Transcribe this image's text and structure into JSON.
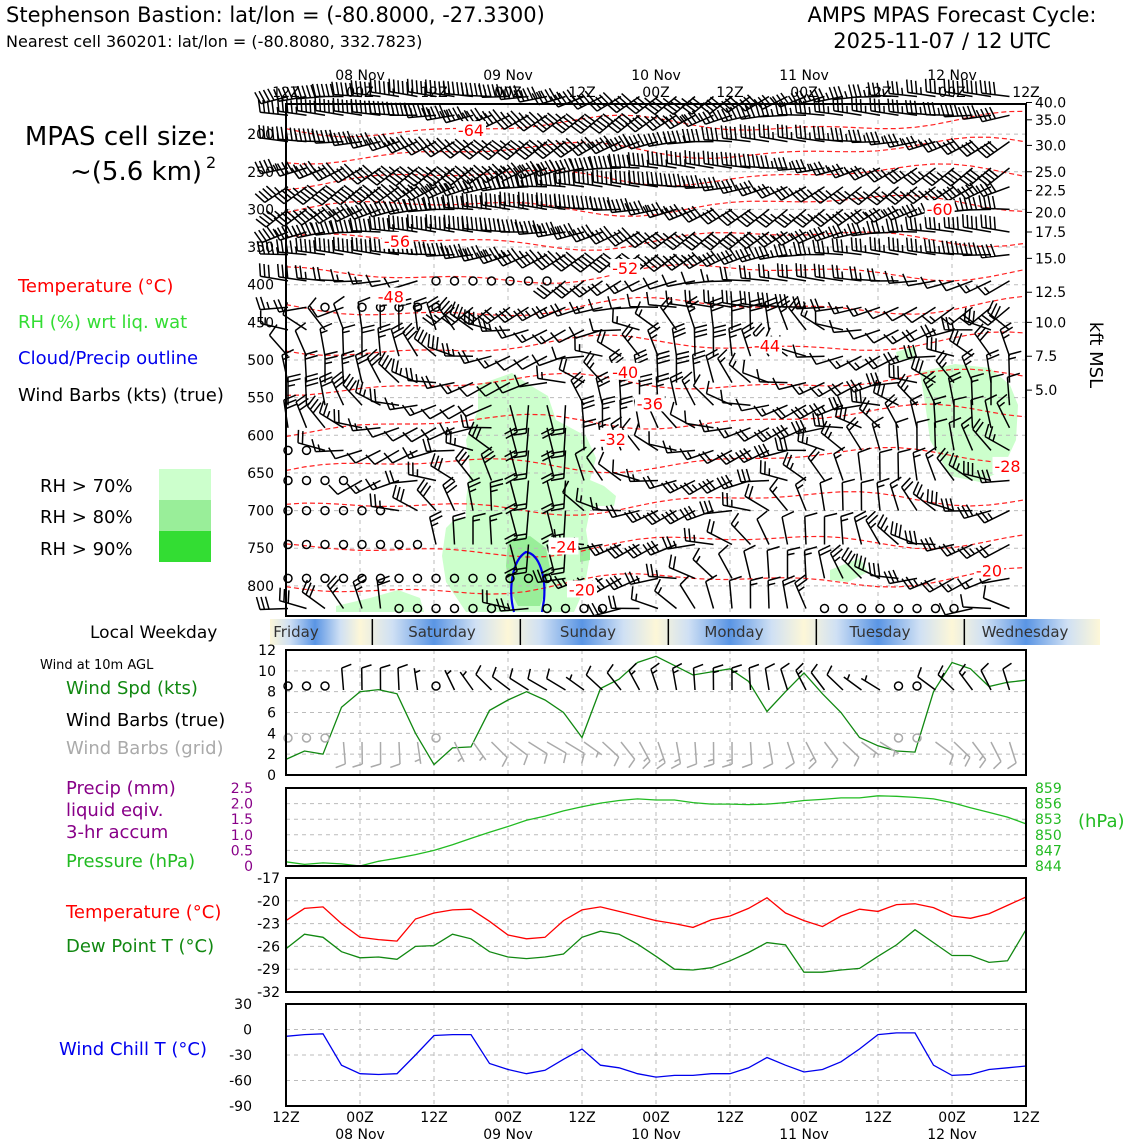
{
  "header": {
    "title_left": "Stephenson Bastion: lat/lon = (-80.8000, -27.3300)",
    "subtitle_left": "Nearest cell 360201: lat/lon = (-80.8080, 332.7823)",
    "title_right_1": "AMPS MPAS Forecast Cycle:",
    "title_right_2": "2025-11-07 / 12 UTC",
    "cell_size_1": "MPAS cell size:",
    "cell_size_2": "~(5.6 km)",
    "cell_size_exp": "2"
  },
  "colors": {
    "temperature": "#ff0000",
    "rh_label": "#33dd33",
    "cloud": "#0000ee",
    "rh70": "#ccffcc",
    "rh80": "#99ee99",
    "rh90": "#33dd33",
    "pressure": "#22bb22",
    "dewpoint": "#118811",
    "windchill": "#0000ee",
    "precip": "#880088",
    "windspd": "#118811",
    "grid_barb": "#aaaaaa"
  },
  "legend": {
    "temperature": "Temperature (°C)",
    "rh": "RH (%) wrt liq. wat",
    "cloud": "Cloud/Precip outline",
    "barbs": "Wind Barbs (kts) (true)",
    "rh70": "RH > 70%",
    "rh80": "RH > 80%",
    "rh90": "RH > 90%"
  },
  "time_axis": {
    "hours": [
      "12Z",
      "00Z",
      "12Z",
      "00Z",
      "12Z",
      "00Z",
      "12Z",
      "00Z",
      "12Z",
      "00Z",
      "12Z"
    ],
    "dates": [
      "",
      "08 Nov",
      "",
      "09 Nov",
      "",
      "10 Nov",
      "",
      "11 Nov",
      "",
      "12 Nov",
      ""
    ]
  },
  "weekday": {
    "label": "Local Weekday",
    "days": [
      "Friday",
      "Saturday",
      "Sunday",
      "Monday",
      "Tuesday",
      "Wednesday"
    ]
  },
  "side_labels": {
    "wind10m": "Wind at 10m AGL",
    "windspd": "Wind Spd (kts)",
    "barbs_true": "Wind Barbs (true)",
    "barbs_grid": "Wind Barbs (grid)",
    "precip_1": "Precip (mm)",
    "precip_2": "liquid eqiv.",
    "precip_3": "3-hr accum",
    "pressure": "Pressure (hPa)",
    "temp": "Temperature (°C)",
    "dewp": "Dew Point T (°C)",
    "windchill": "Wind Chill T (°C)"
  },
  "chart_data": [
    {
      "type": "line",
      "name": "upper-air time-height section",
      "x_hours": [
        0,
        12,
        24,
        36,
        48,
        60,
        72,
        84,
        96,
        108,
        120
      ],
      "x_tick_labels": [
        "12Z",
        "00Z",
        "12Z",
        "00Z",
        "12Z",
        "00Z",
        "12Z",
        "00Z",
        "12Z",
        "00Z",
        "12Z"
      ],
      "ylabel_left": "",
      "ylabel_right": "kft MSL",
      "y_pressure_ticks": [
        200,
        250,
        300,
        350,
        400,
        450,
        500,
        550,
        600,
        650,
        700,
        750,
        800
      ],
      "ylim_pressure": [
        840,
        160
      ],
      "y_kft_ticks": [
        {
          "label": "40.0",
          "p": 158
        },
        {
          "label": "35.0",
          "p": 181
        },
        {
          "label": "30.0",
          "p": 215
        },
        {
          "label": "25.0",
          "p": 250
        },
        {
          "label": "22.5",
          "p": 275
        },
        {
          "label": "20.0",
          "p": 304
        },
        {
          "label": "17.5",
          "p": 330
        },
        {
          "label": "15.0",
          "p": 365
        },
        {
          "label": "12.5",
          "p": 410
        },
        {
          "label": "10.0",
          "p": 450
        },
        {
          "label": "7.5",
          "p": 495
        },
        {
          "label": "5.0",
          "p": 540
        }
      ],
      "temperature_contour_labels": [
        {
          "text": "-64",
          "t": 30,
          "p": 200
        },
        {
          "text": "-60",
          "t": 106,
          "p": 305
        },
        {
          "text": "-56",
          "t": 18,
          "p": 347
        },
        {
          "text": "-52",
          "t": 55,
          "p": 383
        },
        {
          "text": "-48",
          "t": 17,
          "p": 421
        },
        {
          "text": "-44",
          "t": 78,
          "p": 486
        },
        {
          "text": "-40",
          "t": 55,
          "p": 521
        },
        {
          "text": "-36",
          "t": 59,
          "p": 563
        },
        {
          "text": "-32",
          "t": 53,
          "p": 610
        },
        {
          "text": "-28",
          "t": 117,
          "p": 646
        },
        {
          "text": "-24",
          "t": 45,
          "p": 753
        },
        {
          "text": "-20",
          "t": 48,
          "p": 810
        },
        {
          "text": "-20",
          "t": 114,
          "p": 785
        }
      ]
    },
    {
      "type": "line",
      "name": "10m wind speed",
      "ylabel": "Wind Spd (kts)",
      "ylim": [
        0,
        12
      ],
      "y_ticks": [
        "0",
        "2",
        "4",
        "6",
        "8",
        "10",
        "12"
      ],
      "x_hours": [
        0,
        3,
        6,
        9,
        12,
        15,
        18,
        21,
        24,
        27,
        30,
        33,
        36,
        39,
        42,
        45,
        48,
        51,
        54,
        57,
        60,
        63,
        66,
        69,
        72,
        75,
        78,
        81,
        84,
        87,
        90,
        93,
        96,
        99,
        102,
        105,
        108,
        111,
        114,
        117,
        120
      ],
      "values": [
        1.5,
        2.3,
        2.0,
        6.5,
        8.0,
        8.2,
        7.8,
        4.0,
        1.0,
        2.6,
        2.7,
        6.2,
        7.2,
        8.0,
        7.2,
        6.0,
        3.6,
        8.3,
        9.2,
        10.8,
        11.4,
        10.5,
        9.6,
        9.9,
        10.2,
        9.0,
        6.1,
        8.0,
        9.8,
        7.8,
        6.0,
        3.6,
        2.8,
        2.3,
        2.2,
        8.0,
        10.8,
        10.2,
        8.5,
        8.9,
        9.1
      ]
    },
    {
      "type": "line",
      "name": "precip and surface pressure",
      "ylabel_left": "Precip (mm)",
      "ylabel_right": "(hPa)",
      "ylim_left": [
        0,
        2.5
      ],
      "y_ticks_left": [
        "0",
        "0.5",
        "1.0",
        "1.5",
        "2.0",
        "2.5"
      ],
      "ylim_right": [
        844,
        859
      ],
      "y_ticks_right": [
        "844",
        "847",
        "850",
        "853",
        "856",
        "859"
      ],
      "x_hours": [
        0,
        3,
        6,
        9,
        12,
        15,
        18,
        21,
        24,
        27,
        30,
        33,
        36,
        39,
        42,
        45,
        48,
        51,
        54,
        57,
        60,
        63,
        66,
        69,
        72,
        75,
        78,
        81,
        84,
        87,
        90,
        93,
        96,
        99,
        102,
        105,
        108,
        111,
        114,
        117,
        120
      ],
      "precip_values": [],
      "pressure_values": [
        844.8,
        844.3,
        844.6,
        844.4,
        844.0,
        844.9,
        845.5,
        846.2,
        847.0,
        848.1,
        849.3,
        850.5,
        851.6,
        852.8,
        853.6,
        854.6,
        855.4,
        856.1,
        856.6,
        856.9,
        856.7,
        856.7,
        856.2,
        855.9,
        855.9,
        855.8,
        855.9,
        856.2,
        856.6,
        856.8,
        857.1,
        857.1,
        857.5,
        857.4,
        857.2,
        856.9,
        856.2,
        855.2,
        854.3,
        853.4,
        852.1
      ]
    },
    {
      "type": "line",
      "name": "temperature and dew point",
      "ylim": [
        -32,
        -17
      ],
      "y_ticks": [
        "-32",
        "-29",
        "-26",
        "-23",
        "-20",
        "-17"
      ],
      "x_hours": [
        0,
        3,
        6,
        9,
        12,
        15,
        18,
        21,
        24,
        27,
        30,
        33,
        36,
        39,
        42,
        45,
        48,
        51,
        54,
        57,
        60,
        63,
        66,
        69,
        72,
        75,
        78,
        81,
        84,
        87,
        90,
        93,
        96,
        99,
        102,
        105,
        108,
        111,
        114,
        117,
        120
      ],
      "series": [
        {
          "name": "Temperature",
          "values": [
            -22.6,
            -21.0,
            -20.8,
            -23.0,
            -24.8,
            -25.1,
            -25.3,
            -22.4,
            -21.6,
            -21.2,
            -21.1,
            -22.7,
            -24.5,
            -25.0,
            -24.8,
            -22.6,
            -21.2,
            -20.8,
            -21.4,
            -22.0,
            -22.6,
            -23.0,
            -23.5,
            -22.5,
            -22.0,
            -21.0,
            -19.6,
            -21.6,
            -22.6,
            -23.4,
            -22.0,
            -21.1,
            -21.4,
            -20.5,
            -20.4,
            -20.9,
            -22.0,
            -22.3,
            -21.7,
            -20.6,
            -19.5
          ]
        },
        {
          "name": "Dew Point",
          "values": [
            -26.3,
            -24.4,
            -24.8,
            -26.7,
            -27.5,
            -27.4,
            -27.7,
            -26.0,
            -25.9,
            -24.4,
            -25.0,
            -26.7,
            -27.4,
            -27.6,
            -27.4,
            -27.0,
            -24.8,
            -24.0,
            -24.4,
            -25.7,
            -27.3,
            -29.0,
            -29.1,
            -28.8,
            -27.9,
            -26.8,
            -25.5,
            -25.8,
            -29.4,
            -29.4,
            -29.1,
            -28.9,
            -27.3,
            -25.8,
            -23.8,
            -25.5,
            -27.2,
            -27.2,
            -28.1,
            -27.9,
            -23.8
          ]
        }
      ]
    },
    {
      "type": "line",
      "name": "wind chill",
      "ylim": [
        -90,
        30
      ],
      "y_ticks": [
        "-90",
        "-60",
        "-30",
        "0",
        "30"
      ],
      "x_hours": [
        0,
        3,
        6,
        9,
        12,
        15,
        18,
        21,
        24,
        27,
        30,
        33,
        36,
        39,
        42,
        45,
        48,
        51,
        54,
        57,
        60,
        63,
        66,
        69,
        72,
        75,
        78,
        81,
        84,
        87,
        90,
        93,
        96,
        99,
        102,
        105,
        108,
        111,
        114,
        117,
        120
      ],
      "values": [
        -8,
        -6,
        -5,
        -42,
        -52,
        -53,
        -52,
        -30,
        -7,
        -6,
        -6,
        -40,
        -47,
        -52,
        -48,
        -35,
        -23,
        -42,
        -45,
        -52,
        -56,
        -54,
        -54,
        -52,
        -52,
        -45,
        -33,
        -42,
        -50,
        -47,
        -38,
        -23,
        -6,
        -4,
        -4,
        -42,
        -54,
        -53,
        -47,
        -45,
        -43
      ]
    }
  ]
}
